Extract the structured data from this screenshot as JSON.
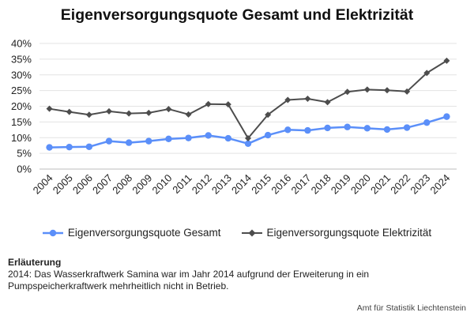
{
  "colors": {
    "gesamt": "#5b8ff9",
    "elektrizitaet": "#4d4d4d",
    "grid": "#e3e3e3"
  },
  "chart_data": {
    "type": "line",
    "title": "Eigenversorgungsquote Gesamt und Elektrizität",
    "xlabel": "",
    "ylabel": "",
    "x": [
      "2004",
      "2005",
      "2006",
      "2007",
      "2008",
      "2009",
      "2010",
      "2011",
      "2012",
      "2013",
      "2014",
      "2015",
      "2016",
      "2017",
      "2018",
      "2019",
      "2020",
      "2021",
      "2022",
      "2023",
      "2024"
    ],
    "ylim": [
      0,
      40
    ],
    "yticks": [
      "0%",
      "5%",
      "10%",
      "15%",
      "20%",
      "25%",
      "30%",
      "35%",
      "40%"
    ],
    "grid": true,
    "legend_position": "bottom",
    "series": [
      {
        "name": "Eigenversorgungsquote Gesamt",
        "marker": "circle",
        "values": [
          6.9,
          7.0,
          7.1,
          8.9,
          8.4,
          8.9,
          9.6,
          9.9,
          10.7,
          9.8,
          8.1,
          10.8,
          12.5,
          12.3,
          13.1,
          13.4,
          13.0,
          12.6,
          13.2,
          14.8,
          16.7
        ]
      },
      {
        "name": "Eigenversorgungsquote Elektrizität",
        "marker": "diamond",
        "values": [
          19.2,
          18.2,
          17.3,
          18.4,
          17.7,
          17.9,
          19.1,
          17.4,
          20.7,
          20.6,
          9.8,
          17.3,
          22.0,
          22.4,
          21.3,
          24.6,
          25.3,
          25.1,
          24.7,
          30.6,
          34.5
        ]
      }
    ]
  },
  "note": {
    "title": "Erläuterung",
    "text": "2014: Das Wasserkraftwerk Samina war im Jahr 2014 aufgrund der Erweiterung in ein Pumpspeicherkraftwerk mehrheitlich nicht in Betrieb."
  },
  "source": "Amt für Statistik Liechtenstein"
}
